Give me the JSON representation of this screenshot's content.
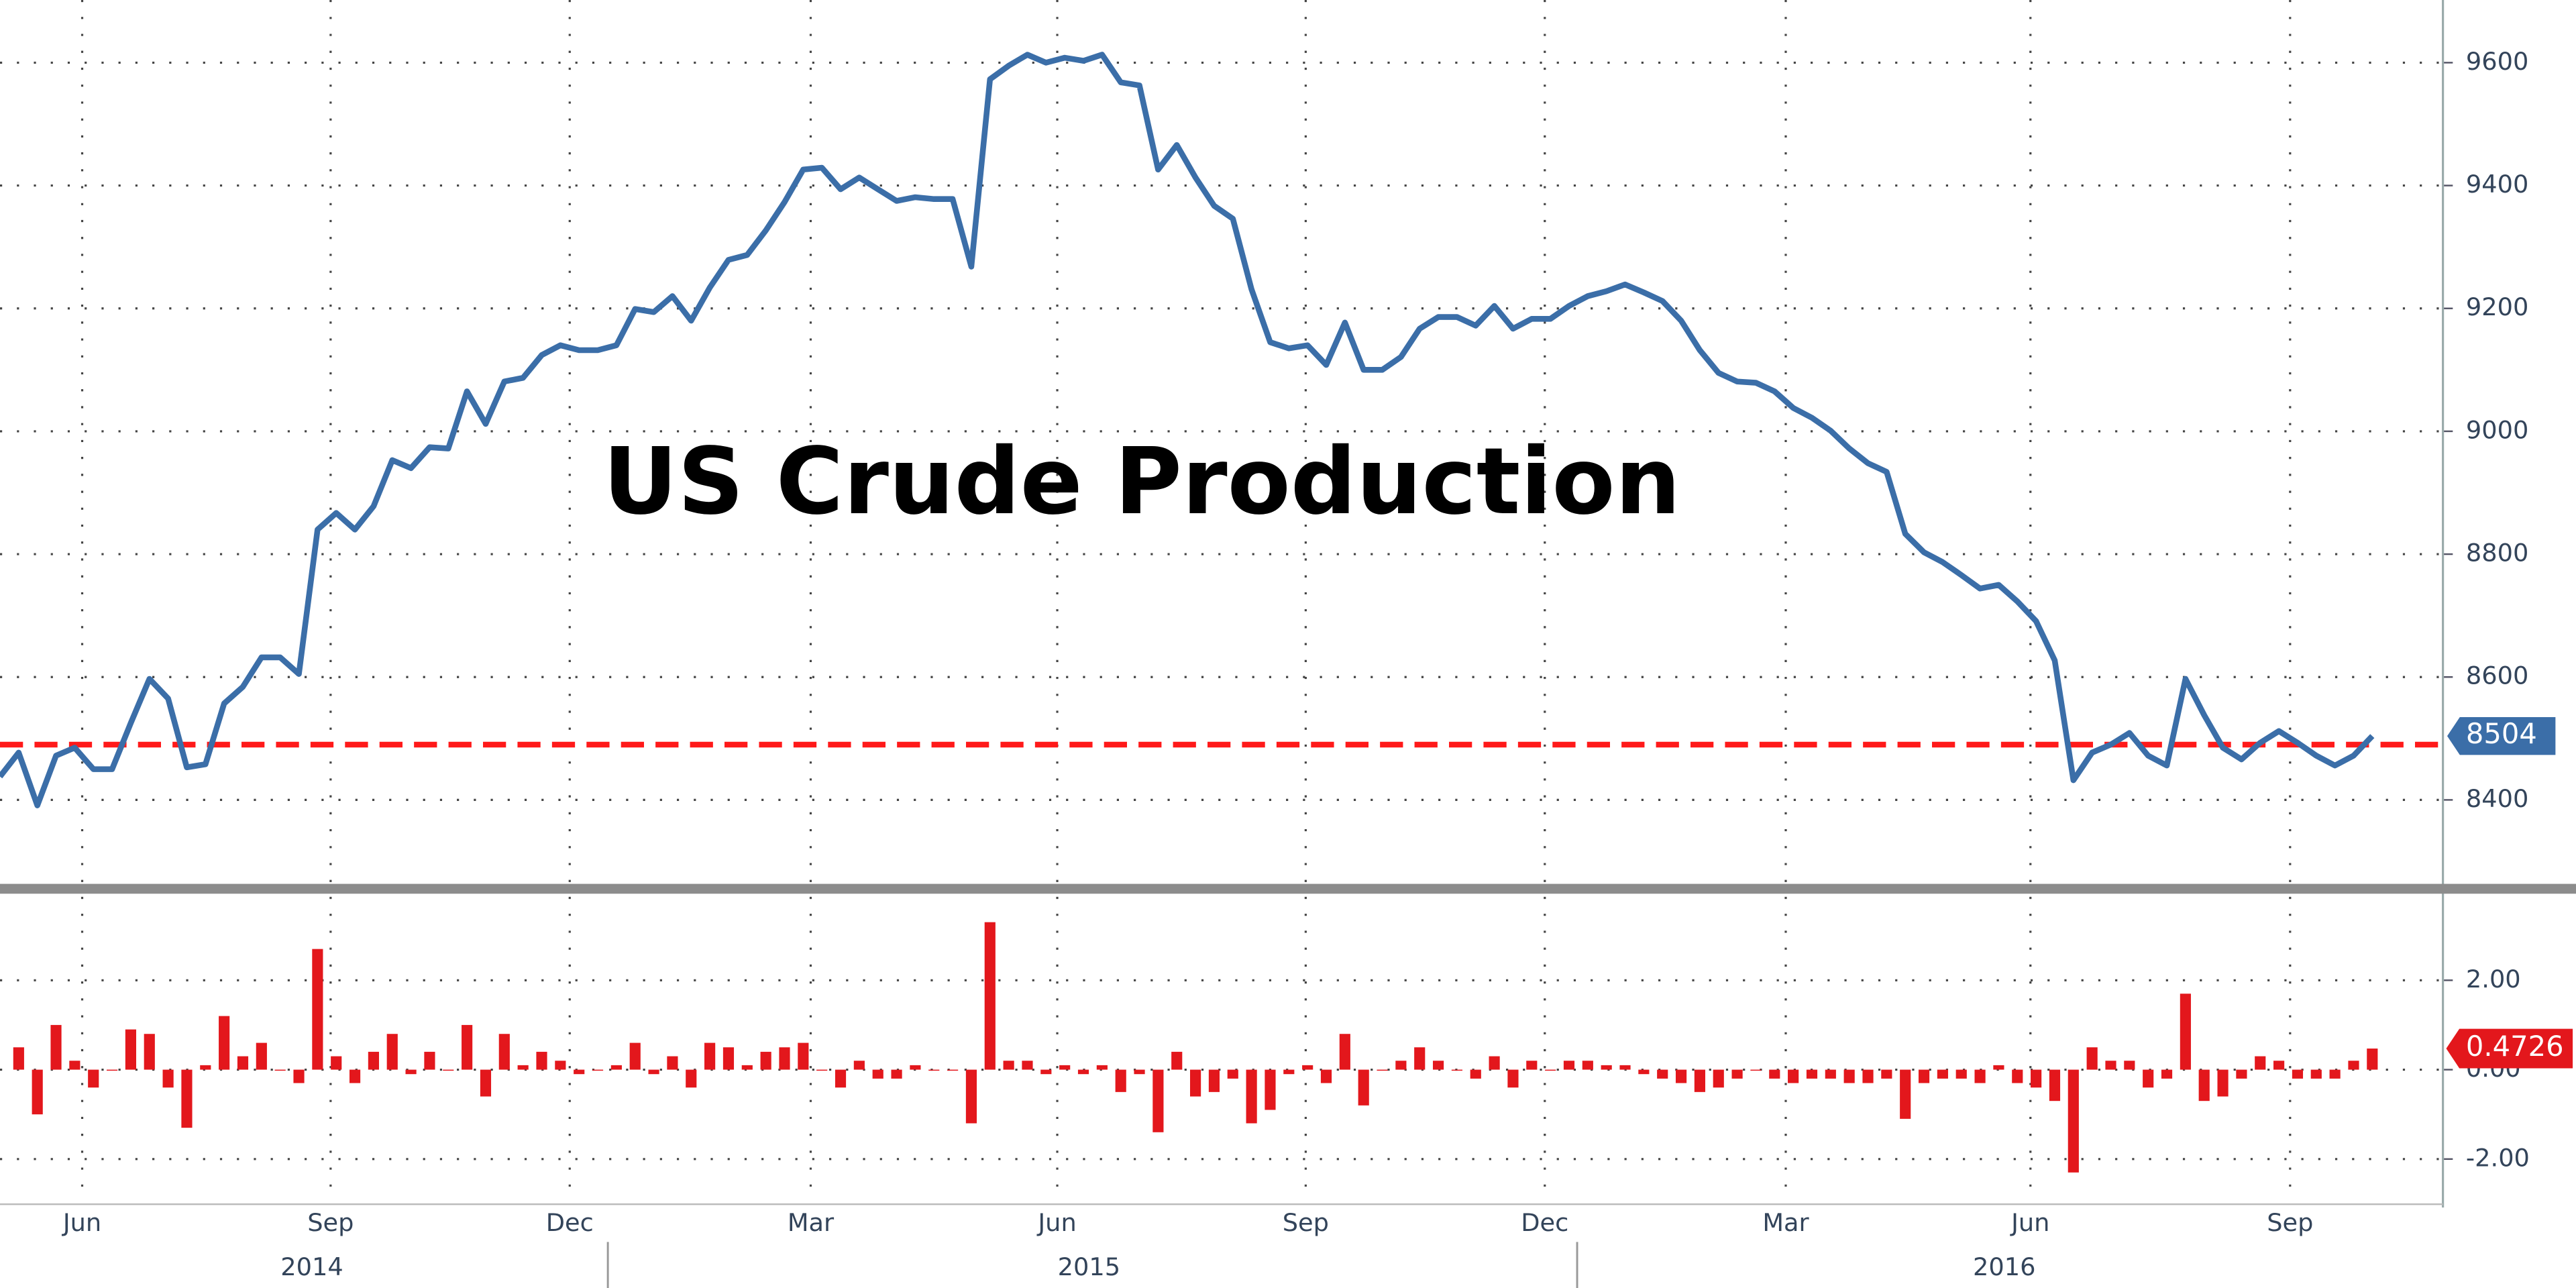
{
  "chart_data": [
    {
      "type": "line",
      "title": "US Crude Production",
      "color": "#3b6ea8",
      "values": [
        8438,
        8477,
        8391,
        8472,
        8485,
        8450,
        8450,
        8525,
        8597,
        8565,
        8453,
        8458,
        8557,
        8584,
        8632,
        8632,
        8605,
        8840,
        8867,
        8840,
        8878,
        8953,
        8940,
        8974,
        8972,
        9065,
        9012,
        9081,
        9087,
        9124,
        9140,
        9132,
        9132,
        9140,
        9199,
        9194,
        9220,
        9180,
        9234,
        9279,
        9287,
        9327,
        9373,
        9426,
        9429,
        9394,
        9413,
        9394,
        9375,
        9381,
        9378,
        9378,
        9268,
        9573,
        9595,
        9613,
        9600,
        9608,
        9603,
        9613,
        9568,
        9563,
        9426,
        9466,
        9413,
        9367,
        9346,
        9231,
        9145,
        9135,
        9140,
        9108,
        9177,
        9100,
        9100,
        9121,
        9167,
        9186,
        9186,
        9172,
        9204,
        9167,
        9183,
        9183,
        9204,
        9220,
        9228,
        9239,
        9226,
        9212,
        9180,
        9132,
        9095,
        9081,
        9079,
        9065,
        9038,
        9022,
        9001,
        8972,
        8948,
        8934,
        8833,
        8803,
        8787,
        8766,
        8744,
        8750,
        8723,
        8691,
        8627,
        8432,
        8477,
        8490,
        8509,
        8472,
        8456,
        8597,
        8538,
        8485,
        8466,
        8493,
        8512,
        8493,
        8472,
        8456,
        8472,
        8504
      ],
      "reference_line": 8490,
      "reference_color": "#ff1a1a",
      "ylim": [
        8258,
        9702
      ],
      "yticks": [
        8400,
        8600,
        8800,
        9000,
        9200,
        9400,
        9600
      ],
      "grid": true
    },
    {
      "type": "bar",
      "color": "#e3171c",
      "values": [
        null,
        0.5,
        -1.0,
        1.0,
        0.2,
        -0.4,
        0,
        0.9,
        0.8,
        -0.4,
        -1.3,
        0.1,
        1.2,
        0.3,
        0.6,
        0,
        -0.3,
        2.7,
        0.3,
        -0.3,
        0.4,
        0.8,
        -0.1,
        0.4,
        0,
        1.0,
        -0.6,
        0.8,
        0.1,
        0.4,
        0.2,
        -0.1,
        0,
        0.1,
        0.6,
        -0.1,
        0.3,
        -0.4,
        0.6,
        0.5,
        0.1,
        0.4,
        0.5,
        0.6,
        0,
        -0.4,
        0.2,
        -0.2,
        -0.2,
        0.1,
        0,
        0,
        -1.2,
        3.3,
        0.2,
        0.2,
        -0.1,
        0.1,
        -0.1,
        0.1,
        -0.5,
        -0.1,
        -1.4,
        0.4,
        -0.6,
        -0.5,
        -0.2,
        -1.2,
        -0.9,
        -0.1,
        0.1,
        -0.3,
        0.8,
        -0.8,
        0,
        0.2,
        0.5,
        0.2,
        0,
        -0.2,
        0.3,
        -0.4,
        0.2,
        0,
        0.2,
        0.2,
        0.1,
        0.1,
        -0.1,
        -0.2,
        -0.3,
        -0.5,
        -0.4,
        -0.2,
        0,
        -0.2,
        -0.3,
        -0.2,
        -0.2,
        -0.3,
        -0.3,
        -0.2,
        -1.1,
        -0.3,
        -0.2,
        -0.2,
        -0.3,
        0.1,
        -0.3,
        -0.4,
        -0.7,
        -2.3,
        0.5,
        0.2,
        0.2,
        -0.4,
        -0.2,
        1.7,
        -0.7,
        -0.6,
        -0.2,
        0.3,
        0.2,
        -0.2,
        -0.2,
        -0.2,
        0.2,
        0.4726
      ],
      "ylim": [
        -2.9,
        3.9
      ],
      "yticks": [
        {
          "value": -2,
          "label": "-2.00"
        },
        {
          "value": 0,
          "label": "0.00"
        },
        {
          "value": 2,
          "label": "2.00"
        }
      ],
      "grid": true,
      "xticks": [
        {
          "value": 4.4,
          "label": "Jun"
        },
        {
          "value": 17.7,
          "label": "Sep"
        },
        {
          "value": 30.5,
          "label": "Dec"
        },
        {
          "value": 43.4,
          "label": "Mar"
        },
        {
          "value": 56.6,
          "label": "Jun"
        },
        {
          "value": 69.9,
          "label": "Sep"
        },
        {
          "value": 82.7,
          "label": "Dec"
        },
        {
          "value": 95.6,
          "label": "Mar"
        },
        {
          "value": 108.7,
          "label": "Jun"
        },
        {
          "value": 122.6,
          "label": "Sep"
        }
      ],
      "years": [
        {
          "value": 16.7,
          "label": "2014"
        },
        {
          "value": 58.3,
          "label": "2015"
        },
        {
          "value": 107.3,
          "label": "2016"
        }
      ]
    }
  ]
}
